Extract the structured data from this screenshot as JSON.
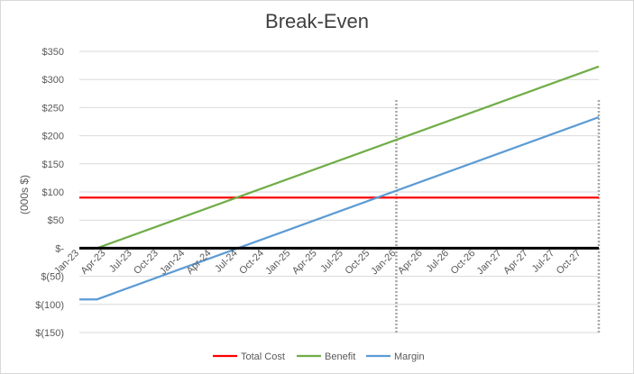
{
  "chart_data": {
    "type": "line",
    "title": "Break-Even",
    "ylabel": "(000s $)",
    "xlabel": "",
    "ylim": [
      -150,
      350
    ],
    "yticks": [
      350,
      300,
      250,
      200,
      150,
      100,
      50,
      0,
      -50,
      -100,
      -150
    ],
    "ytick_labels": [
      "$350",
      "$300",
      "$250",
      "$200",
      "$150",
      "$100",
      "$50",
      "$-",
      "$(50)",
      "$(100)",
      "$(150)"
    ],
    "x_categories": [
      "Jan-23",
      "Apr-23",
      "Jul-23",
      "Oct-23",
      "Jan-24",
      "Apr-24",
      "Jul-24",
      "Oct-24",
      "Jan-25",
      "Apr-25",
      "Jul-25",
      "Oct-25",
      "Jan-26",
      "Apr-26",
      "Jul-26",
      "Oct-26",
      "Jan-27",
      "Apr-27",
      "Jul-27",
      "Oct-27"
    ],
    "x_range": [
      "Jan-23",
      "Dec-27"
    ],
    "grid": true,
    "legend_position": "bottom",
    "series": [
      {
        "name": "Total Cost",
        "color": "#ff0000",
        "points": [
          [
            "Jan-23",
            90
          ],
          [
            "Dec-27",
            90
          ]
        ]
      },
      {
        "name": "Benefit",
        "color": "#70ad47",
        "points": [
          [
            "Jan-23",
            0
          ],
          [
            "Mar-23",
            0
          ],
          [
            "Dec-27",
            323
          ]
        ]
      },
      {
        "name": "Margin",
        "color": "#5b9bd5",
        "points": [
          [
            "Jan-23",
            -91
          ],
          [
            "Mar-23",
            -91
          ],
          [
            "Dec-27",
            233
          ]
        ]
      }
    ],
    "zero_line_color": "#000000",
    "reference_lines": [
      {
        "x": "Jan-26",
        "style": "dotted",
        "color": "#a6a6a6"
      },
      {
        "x": "Dec-27",
        "style": "dotted",
        "color": "#a6a6a6"
      }
    ]
  }
}
